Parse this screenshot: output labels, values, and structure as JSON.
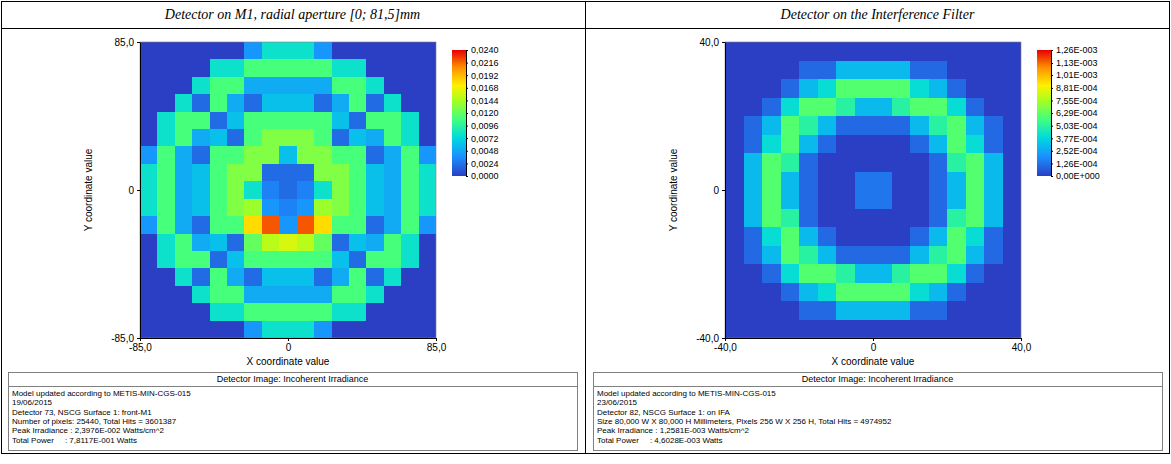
{
  "chart_data": [
    {
      "type": "heatmap",
      "title": "Detector on M1, radial aperture [0; 81,5]mm",
      "x_label": "X coordinate value",
      "y_label": "Y coordinate value",
      "xlim": [
        -85,
        85
      ],
      "ylim": [
        -85,
        85
      ],
      "xticks": [
        {
          "value": -85,
          "label": "-85,0"
        },
        0,
        {
          "value": 85,
          "label": "85,0"
        }
      ],
      "yticks": [
        {
          "value": 85,
          "label": "85,0"
        },
        0,
        {
          "value": -85,
          "label": "-85,0"
        }
      ],
      "cells": [
        [
          0,
          0,
          0,
          0,
          0,
          0,
          0.004,
          0.008,
          0.008,
          0.008,
          0.004,
          0,
          0,
          0,
          0,
          0,
          0
        ],
        [
          0,
          0,
          0,
          0,
          0.008,
          0.008,
          0.011,
          0.011,
          0.011,
          0.011,
          0.011,
          0.008,
          0.008,
          0,
          0,
          0,
          0
        ],
        [
          0,
          0,
          0,
          0.008,
          0.011,
          0.011,
          0.005,
          0.005,
          0.005,
          0.005,
          0.005,
          0.011,
          0.011,
          0.008,
          0,
          0,
          0
        ],
        [
          0,
          0,
          0.008,
          0.002,
          0.011,
          0.005,
          0.002,
          0.006,
          0.006,
          0.006,
          0.002,
          0.005,
          0.011,
          0.002,
          0.008,
          0,
          0
        ],
        [
          0,
          0.008,
          0.011,
          0.011,
          0.002,
          0.006,
          0.011,
          0.011,
          0.011,
          0.011,
          0.011,
          0.006,
          0.002,
          0.011,
          0.011,
          0.008,
          0
        ],
        [
          0,
          0.008,
          0.011,
          0.005,
          0.006,
          0.002,
          0.011,
          0.013,
          0.013,
          0.013,
          0.011,
          0.002,
          0.006,
          0.005,
          0.011,
          0.008,
          0
        ],
        [
          0.004,
          0.011,
          0.005,
          0.002,
          0.011,
          0.011,
          0.013,
          0.013,
          0.006,
          0.013,
          0.013,
          0.011,
          0.011,
          0.002,
          0.005,
          0.011,
          0.004
        ],
        [
          0.008,
          0.011,
          0.005,
          0.006,
          0.011,
          0.013,
          0.013,
          0.002,
          0.002,
          0.002,
          0.013,
          0.013,
          0.011,
          0.006,
          0.005,
          0.011,
          0.008
        ],
        [
          0.008,
          0.011,
          0.005,
          0.006,
          0.011,
          0.013,
          0.008,
          0.003,
          0.002,
          0.003,
          0.008,
          0.013,
          0.011,
          0.006,
          0.005,
          0.011,
          0.008
        ],
        [
          0.008,
          0.011,
          0.005,
          0.006,
          0.011,
          0.013,
          0.014,
          0.004,
          0.003,
          0.004,
          0.014,
          0.013,
          0.011,
          0.006,
          0.005,
          0.011,
          0.008
        ],
        [
          0.004,
          0.011,
          0.005,
          0.002,
          0.011,
          0.011,
          0.018,
          0.022,
          0.004,
          0.022,
          0.018,
          0.011,
          0.011,
          0.002,
          0.005,
          0.011,
          0.004
        ],
        [
          0,
          0.008,
          0.011,
          0.005,
          0.006,
          0.002,
          0.012,
          0.015,
          0.016,
          0.015,
          0.012,
          0.002,
          0.006,
          0.005,
          0.011,
          0.008,
          0
        ],
        [
          0,
          0.008,
          0.011,
          0.011,
          0.002,
          0.006,
          0.011,
          0.011,
          0.011,
          0.011,
          0.011,
          0.006,
          0.002,
          0.011,
          0.011,
          0.008,
          0
        ],
        [
          0,
          0,
          0.008,
          0.002,
          0.011,
          0.005,
          0.002,
          0.006,
          0.006,
          0.006,
          0.002,
          0.005,
          0.011,
          0.002,
          0.008,
          0,
          0
        ],
        [
          0,
          0,
          0,
          0.008,
          0.011,
          0.011,
          0.005,
          0.005,
          0.005,
          0.005,
          0.005,
          0.011,
          0.011,
          0.008,
          0,
          0,
          0
        ],
        [
          0,
          0,
          0,
          0,
          0.008,
          0.008,
          0.011,
          0.011,
          0.011,
          0.011,
          0.011,
          0.008,
          0.008,
          0,
          0,
          0,
          0
        ],
        [
          0,
          0,
          0,
          0,
          0,
          0,
          0.004,
          0.008,
          0.008,
          0.008,
          0.004,
          0,
          0,
          0,
          0,
          0,
          0
        ]
      ],
      "colorbar_range": [
        0,
        0.024
      ],
      "colorbar_ticks": [
        {
          "value": 0.024,
          "label": "0,0240"
        },
        {
          "value": 0.0216,
          "label": "0,0216"
        },
        {
          "value": 0.0192,
          "label": "0,0192"
        },
        {
          "value": 0.0168,
          "label": "0,0168"
        },
        {
          "value": 0.0144,
          "label": "0,0144"
        },
        {
          "value": 0.012,
          "label": "0,0120"
        },
        {
          "value": 0.0096,
          "label": "0,0096"
        },
        {
          "value": 0.0072,
          "label": "0,0072"
        },
        {
          "value": 0.0048,
          "label": "0,0048"
        },
        {
          "value": 0.0024,
          "label": "0,0024"
        },
        {
          "value": 0,
          "label": "0,0000"
        }
      ],
      "subtitle": "Detector Image: Incoherent Irradiance",
      "annotations": [
        "Model updated according to METIS-MIN-CGS-015",
        "19/06/2015",
        "Detector 73, NSCG Surface 1: front-M1",
        "Number of pixels: 25440, Total Hits = 3601387",
        "Peak Irradiance : 2,3976E-002 Watts/cm^2",
        "Total Power     : 7,8117E-001 Watts"
      ]
    },
    {
      "type": "heatmap",
      "title": "Detector on the Interference Filter",
      "x_label": "X coordinate value",
      "y_label": "Y coordinate value",
      "xlim": [
        -40,
        40
      ],
      "ylim": [
        -40,
        40
      ],
      "xticks": [
        {
          "value": -40,
          "label": "-40,0"
        },
        0,
        {
          "value": 40,
          "label": "40,0"
        }
      ],
      "yticks": [
        {
          "value": 40,
          "label": "40,0"
        },
        0,
        {
          "value": -40,
          "label": "-40,0"
        }
      ],
      "cells": [
        [
          0,
          0,
          0,
          0,
          0,
          0,
          0,
          0,
          0,
          0,
          0,
          0,
          0,
          0,
          0,
          0
        ],
        [
          0,
          0,
          0,
          0,
          0.0001,
          0.0001,
          0.0003,
          0.0003,
          0.0003,
          0.0003,
          0.0001,
          0.0001,
          0,
          0,
          0,
          0
        ],
        [
          0,
          0,
          0,
          0.0001,
          0.0003,
          0.0004,
          0.0006,
          0.0006,
          0.0006,
          0.0006,
          0.0004,
          0.0003,
          0.0001,
          0,
          0,
          0
        ],
        [
          0,
          0,
          0.0001,
          0.0004,
          0.0006,
          0.0006,
          0.0005,
          0.0003,
          0.0003,
          0.0005,
          0.0006,
          0.0006,
          0.0004,
          0.0001,
          0,
          0
        ],
        [
          0,
          0.0001,
          0.0003,
          0.0006,
          0.0005,
          0.0003,
          0.0001,
          0.0001,
          0.0001,
          0.0001,
          0.0003,
          0.0005,
          0.0006,
          0.0003,
          0.0001,
          0
        ],
        [
          0,
          0.0001,
          0.0004,
          0.0006,
          0.0003,
          0.0001,
          0,
          0,
          0,
          0,
          0.0001,
          0.0003,
          0.0006,
          0.0004,
          0.0001,
          0
        ],
        [
          0,
          0.0003,
          0.0006,
          0.0005,
          0.0001,
          0,
          0,
          0,
          0,
          0,
          0,
          0.0001,
          0.0005,
          0.0006,
          0.0003,
          0
        ],
        [
          0,
          0.0003,
          0.0006,
          0.0003,
          0.0001,
          0,
          0,
          0.00013,
          0.00013,
          0,
          0,
          0.0001,
          0.0003,
          0.0006,
          0.0003,
          0
        ],
        [
          0,
          0.0003,
          0.0006,
          0.0003,
          0.0001,
          0,
          0,
          0.00013,
          0.00013,
          0,
          0,
          0.0001,
          0.0003,
          0.0006,
          0.0003,
          0
        ],
        [
          0,
          0.0003,
          0.0006,
          0.0005,
          0.0001,
          0,
          0,
          0,
          0,
          0,
          0,
          0.0001,
          0.0005,
          0.0006,
          0.0003,
          0
        ],
        [
          0,
          0.0001,
          0.0004,
          0.0006,
          0.0003,
          0.0001,
          0,
          0,
          0,
          0,
          0.0001,
          0.0003,
          0.0006,
          0.0004,
          0.0001,
          0
        ],
        [
          0,
          0.0001,
          0.0003,
          0.0006,
          0.0005,
          0.0003,
          0.0001,
          0.0001,
          0.0001,
          0.0001,
          0.0003,
          0.0005,
          0.0006,
          0.0003,
          0.0001,
          0
        ],
        [
          0,
          0,
          0.0001,
          0.0004,
          0.0006,
          0.0006,
          0.0005,
          0.0003,
          0.0003,
          0.0005,
          0.0006,
          0.0006,
          0.0004,
          0.0001,
          0,
          0
        ],
        [
          0,
          0,
          0,
          0.0001,
          0.0003,
          0.0004,
          0.0006,
          0.0006,
          0.0006,
          0.0006,
          0.0004,
          0.0003,
          0.0001,
          0,
          0,
          0
        ],
        [
          0,
          0,
          0,
          0,
          0.0001,
          0.0001,
          0.0003,
          0.0003,
          0.0003,
          0.0003,
          0.0001,
          0.0001,
          0,
          0,
          0,
          0
        ],
        [
          0,
          0,
          0,
          0,
          0,
          0,
          0,
          0,
          0,
          0,
          0,
          0,
          0,
          0,
          0,
          0
        ]
      ],
      "colorbar_range": [
        0,
        0.00126
      ],
      "colorbar_ticks": [
        {
          "value": 0.00126,
          "label": "1,26E-003"
        },
        {
          "value": 0.00113,
          "label": "1,13E-003"
        },
        {
          "value": 0.00101,
          "label": "1,01E-003"
        },
        {
          "value": 0.000881,
          "label": "8,81E-004"
        },
        {
          "value": 0.000755,
          "label": "7,55E-004"
        },
        {
          "value": 0.000629,
          "label": "6,29E-004"
        },
        {
          "value": 0.000503,
          "label": "5,03E-004"
        },
        {
          "value": 0.000377,
          "label": "3,77E-004"
        },
        {
          "value": 0.000252,
          "label": "2,52E-004"
        },
        {
          "value": 0.000126,
          "label": "1,26E-004"
        },
        {
          "value": 0,
          "label": "0,00E+000"
        }
      ],
      "subtitle": "Detector Image: Incoherent Irradiance",
      "annotations": [
        "Model updated according to METIS-MIN-CGS-015",
        "23/06/2015",
        "Detector 82, NSCG Surface 1: on IFA",
        "Size 80,000 W X 80,000 H Millimeters, Pixels 256 W X 256 H, Total Hits = 4974952",
        "Peak Irradiance : 1,2581E-003 Watts/cm^2",
        "Total Power     : 4,6028E-003 Watts"
      ]
    }
  ]
}
